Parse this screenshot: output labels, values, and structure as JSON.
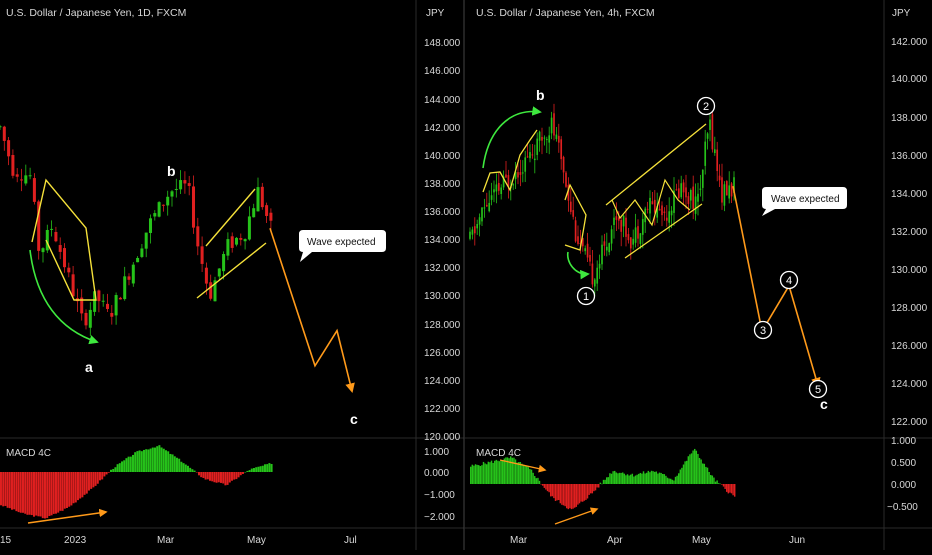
{
  "colors": {
    "background": "#000000",
    "panel_border": "#2a2a2a",
    "up": "#26c21a",
    "down": "#e02020",
    "pattern": "#f5e13a",
    "projection": "#ff9a1a",
    "arrow": "#3ee83e",
    "text": "#d8d8d8"
  },
  "charts": [
    {
      "title": "U.S. Dollar / Japanese Yen, 1D, FXCM",
      "currency": "JPY",
      "price_ticks": [
        "148.000",
        "146.000",
        "144.000",
        "142.000",
        "140.000",
        "138.000",
        "136.000",
        "134.000",
        "132.000",
        "130.000",
        "128.000",
        "126.000",
        "124.000",
        "122.000",
        "120.000"
      ],
      "macd_label": "MACD 4C",
      "macd_ticks": [
        "1.000",
        "0.000",
        "−1.000",
        "−2.000"
      ],
      "time_ticks": [
        "15",
        "2023",
        "Mar",
        "May",
        "Jul"
      ],
      "wave_labels": [
        "a",
        "b",
        "c"
      ],
      "callout": "Wave expected",
      "chart_data": {
        "type": "candlestick",
        "timeframe": "1D",
        "ylim": [
          120,
          148
        ],
        "path_points": [
          {
            "t": 0,
            "v": 142.0
          },
          {
            "t": 3,
            "v": 139.0
          },
          {
            "t": 7,
            "v": 138.5
          },
          {
            "t": 9,
            "v": 133.0
          },
          {
            "t": 12,
            "v": 135.0
          },
          {
            "t": 16,
            "v": 131.0
          },
          {
            "t": 19,
            "v": 128.0
          },
          {
            "t": 22,
            "v": 130.0
          },
          {
            "t": 25,
            "v": 128.5
          },
          {
            "t": 30,
            "v": 132.0
          },
          {
            "t": 34,
            "v": 135.0
          },
          {
            "t": 39,
            "v": 137.5
          },
          {
            "t": 43,
            "v": 137.8
          },
          {
            "t": 45,
            "v": 134.0
          },
          {
            "t": 48,
            "v": 130.0
          },
          {
            "t": 52,
            "v": 133.5
          },
          {
            "t": 56,
            "v": 134.5
          },
          {
            "t": 59,
            "v": 137.5
          },
          {
            "t": 62,
            "v": 134.8
          }
        ],
        "projection": [
          {
            "label": "",
            "v": 134.8
          },
          {
            "label": "",
            "v": 125.0
          },
          {
            "label": "",
            "v": 127.5
          },
          {
            "label": "",
            "v": 123.2
          }
        ],
        "macd_hist": [
          -1.5,
          -1.9,
          -2.1,
          -1.6,
          -0.8,
          0.2,
          0.9,
          1.2,
          0.5,
          -0.3,
          -0.6,
          0.1,
          0.4
        ]
      }
    },
    {
      "title": "U.S. Dollar / Japanese Yen, 4h, FXCM",
      "currency": "JPY",
      "price_ticks": [
        "142.000",
        "140.000",
        "138.000",
        "136.000",
        "134.000",
        "132.000",
        "130.000",
        "128.000",
        "126.000",
        "124.000",
        "122.000"
      ],
      "macd_label": "MACD 4C",
      "macd_ticks": [
        "1.000",
        "0.500",
        "0.000",
        "−0.500"
      ],
      "time_ticks": [
        "Mar",
        "Apr",
        "May",
        "Jun"
      ],
      "wave_labels": [
        "b",
        "c"
      ],
      "wave_counts": [
        "1",
        "2",
        "3",
        "4",
        "5"
      ],
      "callout": "Wave expected",
      "chart_data": {
        "type": "candlestick",
        "timeframe": "4h",
        "ylim": [
          121,
          143
        ],
        "path_points": [
          {
            "t": 0,
            "v": 132.0
          },
          {
            "t": 4,
            "v": 134.0
          },
          {
            "t": 8,
            "v": 135.0
          },
          {
            "t": 12,
            "v": 136.0
          },
          {
            "t": 16,
            "v": 137.0
          },
          {
            "t": 20,
            "v": 138.5
          },
          {
            "t": 23,
            "v": 136.0
          },
          {
            "t": 26,
            "v": 132.5
          },
          {
            "t": 30,
            "v": 130.0
          },
          {
            "t": 33,
            "v": 131.5
          },
          {
            "t": 36,
            "v": 133.5
          },
          {
            "t": 40,
            "v": 132.0
          },
          {
            "t": 44,
            "v": 134.0
          },
          {
            "t": 48,
            "v": 133.5
          },
          {
            "t": 52,
            "v": 135.0
          },
          {
            "t": 56,
            "v": 134.0
          },
          {
            "t": 59,
            "v": 138.5
          },
          {
            "t": 62,
            "v": 134.5
          },
          {
            "t": 65,
            "v": 135.0
          }
        ],
        "projection": [
          {
            "label": "",
            "v": 135.0
          },
          {
            "label": "3",
            "v": 127.0
          },
          {
            "label": "4",
            "v": 129.5
          },
          {
            "label": "5",
            "v": 124.0
          }
        ],
        "macd_hist": [
          0.4,
          0.5,
          0.6,
          0.3,
          -0.3,
          -0.6,
          -0.2,
          0.3,
          0.2,
          0.3,
          0.1,
          0.8,
          0.1,
          -0.3
        ]
      }
    }
  ]
}
